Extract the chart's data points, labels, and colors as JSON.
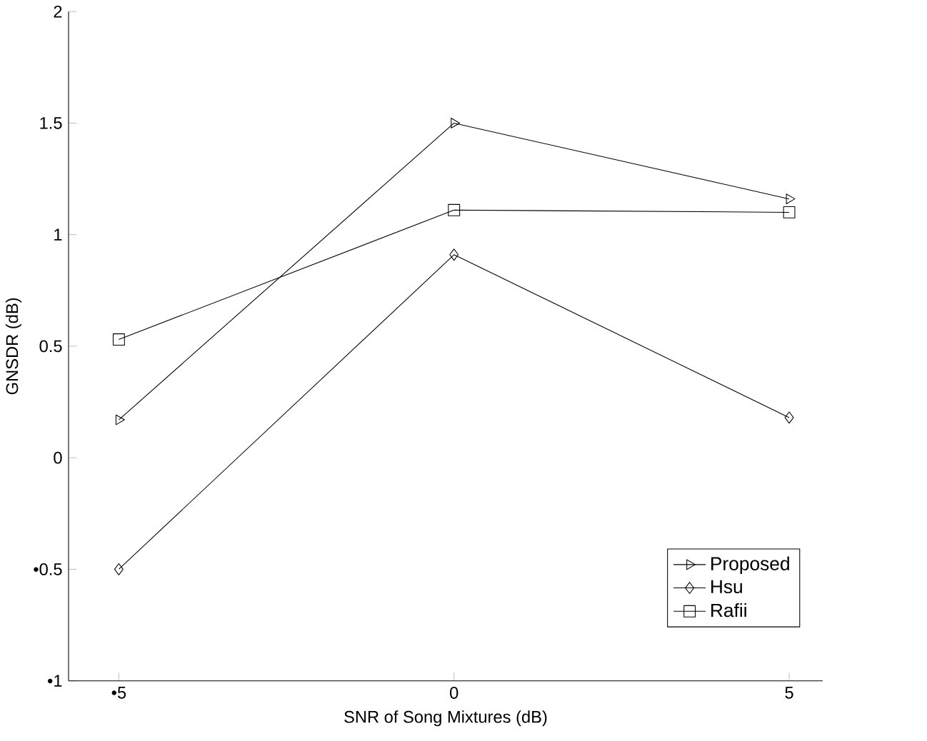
{
  "chart_data": {
    "type": "line",
    "xlabel": "SNR of Song Mixtures (dB)",
    "ylabel": "GNSDR (dB)",
    "x": [
      -5,
      0,
      5
    ],
    "series": [
      {
        "name": "Proposed",
        "color": "#000000",
        "marker": "triangle",
        "values": [
          0.17,
          1.5,
          1.16
        ]
      },
      {
        "name": "Hsu",
        "color": "#000000",
        "marker": "diamond",
        "values": [
          -0.5,
          0.91,
          0.18
        ]
      },
      {
        "name": "Rafii",
        "color": "#000000",
        "marker": "square",
        "values": [
          0.53,
          1.11,
          1.1
        ]
      }
    ],
    "xlim": [
      -5.75,
      5.5
    ],
    "ylim": [
      -1,
      2
    ],
    "xticks": [
      {
        "value": -5,
        "label": "•5"
      },
      0,
      5
    ],
    "yticks": [
      {
        "value": -1,
        "label": "•1"
      },
      {
        "value": -0.5,
        "label": "•0.5"
      },
      0,
      0.5,
      1,
      1.5,
      2
    ],
    "grid": false,
    "legend": "bottom right",
    "line_style": "solid"
  }
}
